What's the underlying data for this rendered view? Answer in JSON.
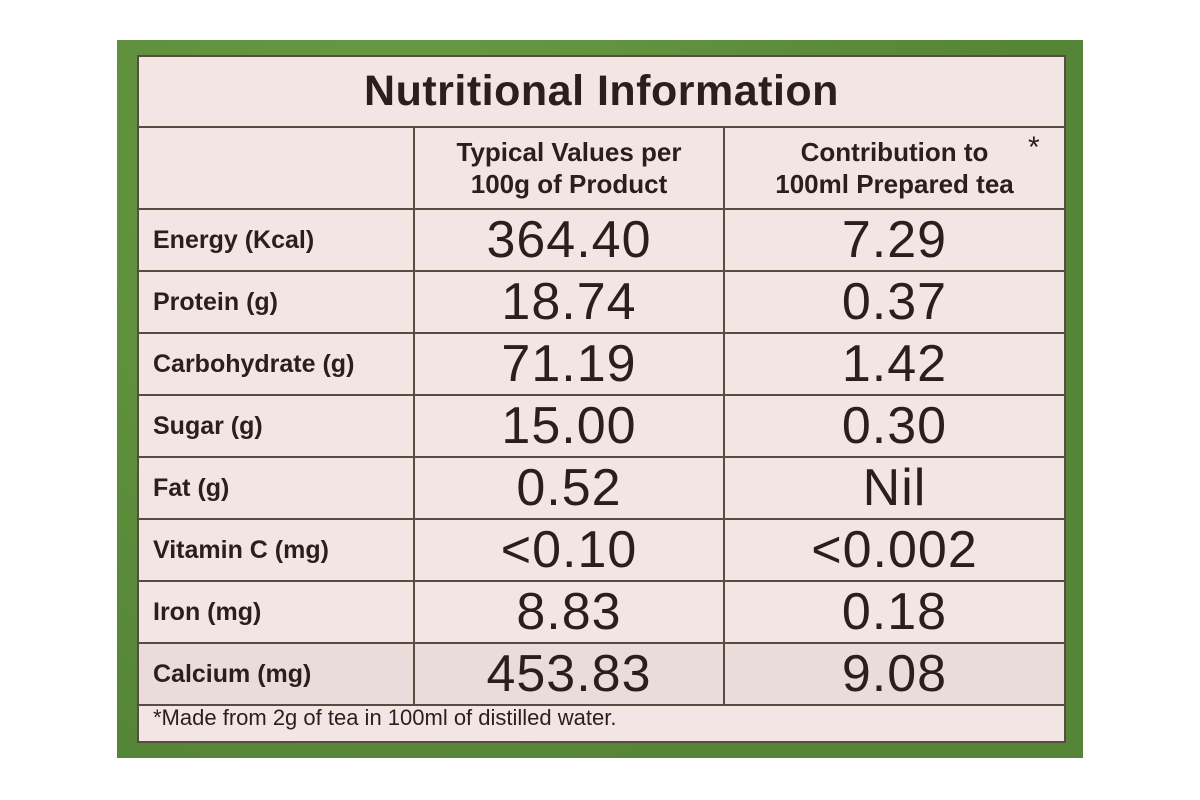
{
  "title": "Nutritional Information",
  "columns": {
    "per_100g": "Typical Values per\n100g of Product",
    "per_100ml": "Contribution to\n100ml Prepared tea",
    "asterisk": "*"
  },
  "rows": [
    {
      "nutrient": "Energy (Kcal)",
      "per_100g": "364.40",
      "per_100ml": "7.29"
    },
    {
      "nutrient": "Protein (g)",
      "per_100g": "18.74",
      "per_100ml": "0.37"
    },
    {
      "nutrient": "Carbohydrate (g)",
      "per_100g": "71.19",
      "per_100ml": "1.42"
    },
    {
      "nutrient": "Sugar (g)",
      "per_100g": "15.00",
      "per_100ml": "0.30"
    },
    {
      "nutrient": "Fat (g)",
      "per_100g": "0.52",
      "per_100ml": "Nil"
    },
    {
      "nutrient": "Vitamin C (mg)",
      "per_100g": "<0.10",
      "per_100ml": "<0.002"
    },
    {
      "nutrient": "Iron (mg)",
      "per_100g": "8.83",
      "per_100ml": "0.18"
    },
    {
      "nutrient": "Calcium (mg)",
      "per_100g": "453.83",
      "per_100ml": "9.08"
    }
  ],
  "footnote": "*Made from 2g of tea in 100ml of distilled water.",
  "colors": {
    "package_green": "#5d8f3c",
    "label_bg": "#f1e6e3",
    "ink": "#2a1f1a"
  }
}
